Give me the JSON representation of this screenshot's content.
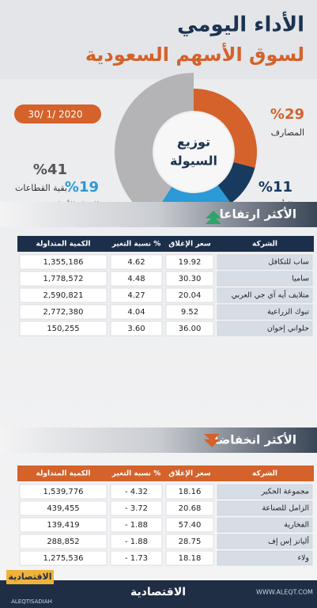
{
  "header": {
    "title": "الأداء اليومي",
    "subtitle": "لسوق الأسهم السعودية",
    "date": "30/ 1/ 2020"
  },
  "chart_data": {
    "type": "pie",
    "center_label": [
      "توزيع",
      "السيولة"
    ],
    "categories": [
      "المصارف",
      "التأمين",
      "المواد الأساسية",
      "بقية القطاعات"
    ],
    "values": [
      29,
      11,
      19,
      41
    ],
    "value_labels": [
      "%29",
      "%11",
      "%19",
      "%41"
    ],
    "colors": [
      "#d4622a",
      "#173a5e",
      "#2b9ad6",
      "#b4b4b6"
    ]
  },
  "gainers": {
    "title": "الأكثر ارتفاعا",
    "columns": [
      "الشركة",
      "سعر الإغلاق",
      "نسبة التغير %",
      "الكمية المتداولة"
    ],
    "rows": [
      [
        "ساب للتكافل",
        "19.92",
        "4.62",
        "1,355,186"
      ],
      [
        "ساميا",
        "30.30",
        "4.48",
        "1,778,572"
      ],
      [
        "متلايف أيه آي جي العربي",
        "20.04",
        "4.27",
        "2,590,821"
      ],
      [
        "تبوك الزراعية",
        "9.52",
        "4.04",
        "2,772,380"
      ],
      [
        "حلواني إخوان",
        "36.00",
        "3.60",
        "150,255"
      ]
    ]
  },
  "losers": {
    "title": "الأكثر انخفاضا",
    "columns": [
      "الشركة",
      "سعر الإغلاق",
      "نسبة التغير %",
      "الكمية المتداولة"
    ],
    "rows": [
      [
        "مجموعة الحكير",
        "18.16",
        "- 4.32",
        "1,539,776"
      ],
      [
        "الزامل للصناعة",
        "20.68",
        "- 3.72",
        "439,455"
      ],
      [
        "الفخارية",
        "57.40",
        "- 1.88",
        "139,419"
      ],
      [
        "أليانز إس إف",
        "28.75",
        "- 1.88",
        "288,852"
      ],
      [
        "ولاء",
        "18.18",
        "- 1.73",
        "1,275,536"
      ]
    ]
  },
  "footer": {
    "brand": "الاقتصادية",
    "stamp": "الاقتصادية",
    "social": "ALEQTISADIAH",
    "website": "WWW.ALEQT.COM"
  }
}
